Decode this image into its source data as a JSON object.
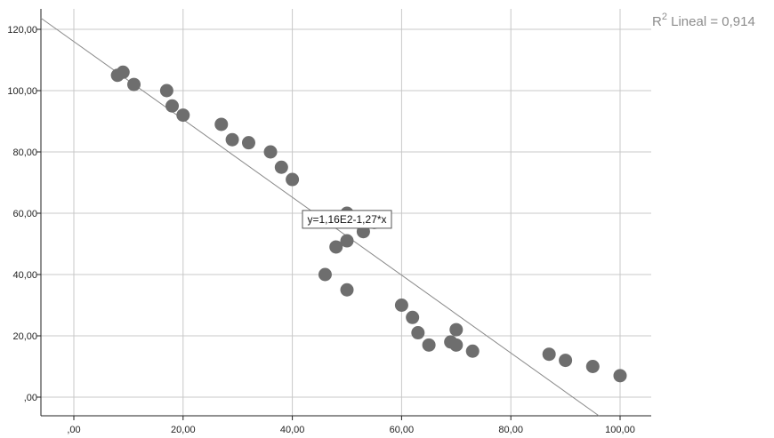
{
  "chart_data": {
    "type": "scatter",
    "title": "",
    "xlabel": "",
    "ylabel": "",
    "xlim": [
      -5,
      105
    ],
    "ylim": [
      -5,
      125
    ],
    "grid": true,
    "x_ticks": [
      0,
      20,
      40,
      60,
      80,
      100
    ],
    "x_tick_labels": [
      ",00",
      "20,00",
      "40,00",
      "60,00",
      "80,00",
      "100,00"
    ],
    "y_ticks": [
      0,
      20,
      40,
      60,
      80,
      100,
      120
    ],
    "y_tick_labels": [
      ",00",
      "20,00",
      "40,00",
      "60,00",
      "80,00",
      "100,00",
      "120,00"
    ],
    "series": [
      {
        "points": [
          [
            8,
            105
          ],
          [
            9,
            106
          ],
          [
            11,
            102
          ],
          [
            17,
            100
          ],
          [
            18,
            95
          ],
          [
            20,
            92
          ],
          [
            27,
            89
          ],
          [
            29,
            84
          ],
          [
            32,
            83
          ],
          [
            36,
            80
          ],
          [
            38,
            75
          ],
          [
            40,
            71
          ],
          [
            46,
            40
          ],
          [
            48,
            49
          ],
          [
            50,
            60
          ],
          [
            50,
            51
          ],
          [
            50,
            35
          ],
          [
            53,
            54
          ],
          [
            55,
            57
          ],
          [
            60,
            30
          ],
          [
            62,
            26
          ],
          [
            63,
            21
          ],
          [
            65,
            17
          ],
          [
            69,
            18
          ],
          [
            70,
            22
          ],
          [
            70,
            17
          ],
          [
            73,
            15
          ],
          [
            87,
            14
          ],
          [
            90,
            12
          ],
          [
            95,
            10
          ],
          [
            100,
            7
          ]
        ],
        "color": "#6e6e6e"
      }
    ],
    "fit_line": {
      "intercept": 116,
      "slope": -1.27,
      "color": "#8a8a8a",
      "equation_label": "y=1,16E2-1,27*x",
      "equation_anchor": [
        50,
        58
      ]
    },
    "r2_label": {
      "prefix": "R",
      "superscript": "2",
      "suffix": " Lineal = 0,914"
    },
    "colors": {
      "grid": "#c8c8c8",
      "axis": "#222222",
      "background": "#ffffff"
    }
  }
}
